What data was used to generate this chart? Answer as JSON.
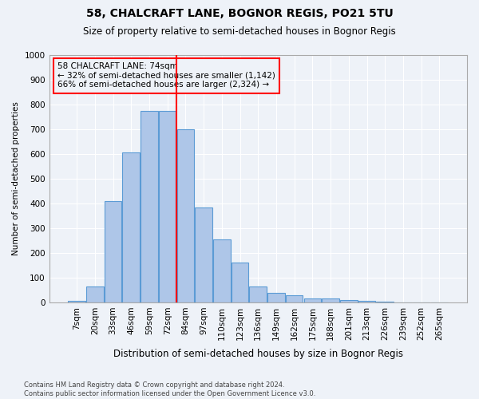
{
  "title": "58, CHALCRAFT LANE, BOGNOR REGIS, PO21 5TU",
  "subtitle": "Size of property relative to semi-detached houses in Bognor Regis",
  "xlabel": "Distribution of semi-detached houses by size in Bognor Regis",
  "ylabel": "Number of semi-detached properties",
  "footnote": "Contains HM Land Registry data © Crown copyright and database right 2024.\nContains public sector information licensed under the Open Government Licence v3.0.",
  "categories": [
    "7sqm",
    "20sqm",
    "33sqm",
    "46sqm",
    "59sqm",
    "72sqm",
    "84sqm",
    "97sqm",
    "110sqm",
    "123sqm",
    "136sqm",
    "149sqm",
    "162sqm",
    "175sqm",
    "188sqm",
    "201sqm",
    "213sqm",
    "226sqm",
    "239sqm",
    "252sqm",
    "265sqm"
  ],
  "values": [
    5,
    63,
    410,
    605,
    775,
    775,
    700,
    385,
    255,
    160,
    63,
    38,
    28,
    15,
    15,
    10,
    5,
    3,
    1,
    1,
    0
  ],
  "bar_color": "#aec6e8",
  "bar_edge_color": "#5b9bd5",
  "vline_color": "red",
  "vline_pos": 5.5,
  "annotation_text": "58 CHALCRAFT LANE: 74sqm\n← 32% of semi-detached houses are smaller (1,142)\n66% of semi-detached houses are larger (2,324) →",
  "annotation_box_color": "red",
  "ylim": [
    0,
    1000
  ],
  "yticks": [
    0,
    100,
    200,
    300,
    400,
    500,
    600,
    700,
    800,
    900,
    1000
  ],
  "background_color": "#eef2f8",
  "grid_color": "white",
  "property_sqm": 74
}
